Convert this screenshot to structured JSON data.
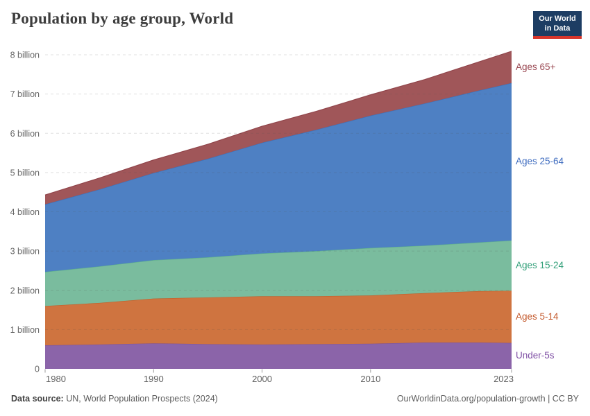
{
  "header": {
    "title": "Population by age group, World"
  },
  "logo": {
    "line1": "Our World",
    "line2": "in Data",
    "bg_color": "#1d3d63",
    "accent_color": "#d8352b"
  },
  "chart_data": {
    "type": "area",
    "stacked": true,
    "title": "Population by age group, World",
    "xlabel": "",
    "ylabel": "",
    "unit": "billion people",
    "x": [
      1980,
      1985,
      1990,
      1995,
      2000,
      2005,
      2010,
      2015,
      2020,
      2023
    ],
    "x_tick_labels": [
      "1980",
      "1990",
      "2000",
      "2010",
      "2023"
    ],
    "x_tick_values": [
      1980,
      1990,
      2000,
      2010,
      2023
    ],
    "y_ticks": [
      {
        "value": 0,
        "label": "0"
      },
      {
        "value": 1,
        "label": "1 billion"
      },
      {
        "value": 2,
        "label": "2 billion"
      },
      {
        "value": 3,
        "label": "3 billion"
      },
      {
        "value": 4,
        "label": "4 billion"
      },
      {
        "value": 5,
        "label": "5 billion"
      },
      {
        "value": 6,
        "label": "6 billion"
      },
      {
        "value": 7,
        "label": "7 billion"
      },
      {
        "value": 8,
        "label": "8 billion"
      }
    ],
    "ylim": [
      0,
      8.4
    ],
    "grid": true,
    "grid_style": "dashed",
    "legend_position": "right",
    "series": [
      {
        "name": "Under-5s",
        "color": "#8b64a9",
        "line_color": "#7c539b",
        "label_color": "#8152a6",
        "values": [
          0.6,
          0.62,
          0.65,
          0.63,
          0.62,
          0.63,
          0.64,
          0.67,
          0.67,
          0.66
        ]
      },
      {
        "name": "Ages 5-14",
        "color": "#cf7440",
        "line_color": "#c0602b",
        "label_color": "#c45a2d",
        "values": [
          1.0,
          1.06,
          1.14,
          1.19,
          1.23,
          1.22,
          1.23,
          1.26,
          1.31,
          1.33
        ]
      },
      {
        "name": "Ages 15-24",
        "color": "#7abc9e",
        "line_color": "#5eb08c",
        "label_color": "#2f9e77",
        "values": [
          0.87,
          0.93,
          0.98,
          1.02,
          1.09,
          1.15,
          1.21,
          1.21,
          1.24,
          1.28
        ]
      },
      {
        "name": "Ages 25-64",
        "color": "#4e80c3",
        "line_color": "#3b70ba",
        "label_color": "#3d6bbf",
        "values": [
          1.72,
          1.96,
          2.22,
          2.51,
          2.82,
          3.09,
          3.37,
          3.62,
          3.87,
          4.01
        ]
      },
      {
        "name": "Ages 65+",
        "color": "#a05659",
        "line_color": "#91454b",
        "label_color": "#9a4852",
        "values": [
          0.24,
          0.29,
          0.33,
          0.37,
          0.42,
          0.47,
          0.53,
          0.61,
          0.73,
          0.81
        ]
      }
    ]
  },
  "footer": {
    "source_label": "Data source:",
    "source_text": " UN, World Population Prospects (2024)",
    "credit": "OurWorldinData.org/population-growth | CC BY"
  }
}
